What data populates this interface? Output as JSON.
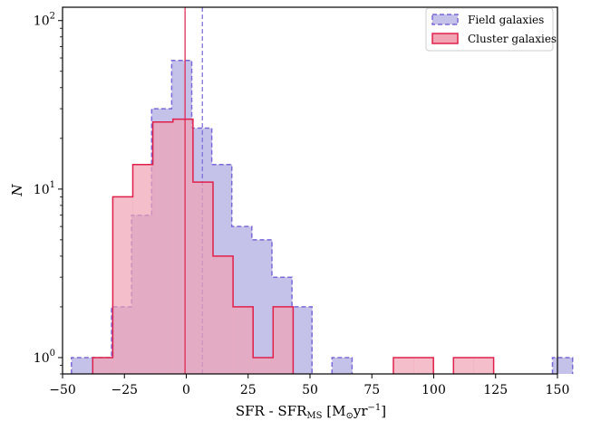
{
  "chart_data": {
    "type": "histogram",
    "xlabel": {
      "base": "SFR - SFR",
      "sub": "MS",
      "unit_open": " [M",
      "sun": "⊙",
      "unit_mid": "yr",
      "exp": "−1",
      "unit_close": "]"
    },
    "ylabel": "N",
    "xlim": [
      -50,
      150
    ],
    "ylim": [
      0.8,
      120
    ],
    "yscale": "log",
    "x_ticks": [
      -50,
      -25,
      0,
      25,
      50,
      75,
      100,
      125,
      150
    ],
    "x_tick_labels": [
      "−50",
      "−25",
      "0",
      "25",
      "50",
      "75",
      "100",
      "125",
      "150"
    ],
    "y_ticks": [
      {
        "value": 1,
        "base": "10",
        "exp": "0"
      },
      {
        "value": 10,
        "base": "10",
        "exp": "1"
      },
      {
        "value": 100,
        "base": "10",
        "exp": "2"
      }
    ],
    "bin_width": 8.1,
    "legend_position": "upper right",
    "series": [
      {
        "name": "Field galaxies",
        "fill": "#c5c2ea",
        "edge": "#7b68d8",
        "linestyle": "dashed",
        "bin_start": -46.4,
        "counts": [
          1,
          1,
          2,
          7,
          30,
          58,
          23,
          14,
          6,
          5,
          3,
          2,
          0,
          1,
          0,
          0,
          0,
          0,
          0,
          0,
          0,
          0,
          0,
          0,
          1
        ],
        "median": 6.5
      },
      {
        "name": "Cluster galaxies",
        "fill": "#f0a3b3",
        "edge": "#e0204a",
        "linestyle": "solid",
        "bin_start": -37.8,
        "counts": [
          1,
          9,
          14,
          25,
          26,
          11,
          4,
          2,
          1,
          2,
          0,
          0,
          0,
          0,
          0,
          1,
          1,
          0,
          1,
          1
        ],
        "median": -0.5
      }
    ]
  }
}
